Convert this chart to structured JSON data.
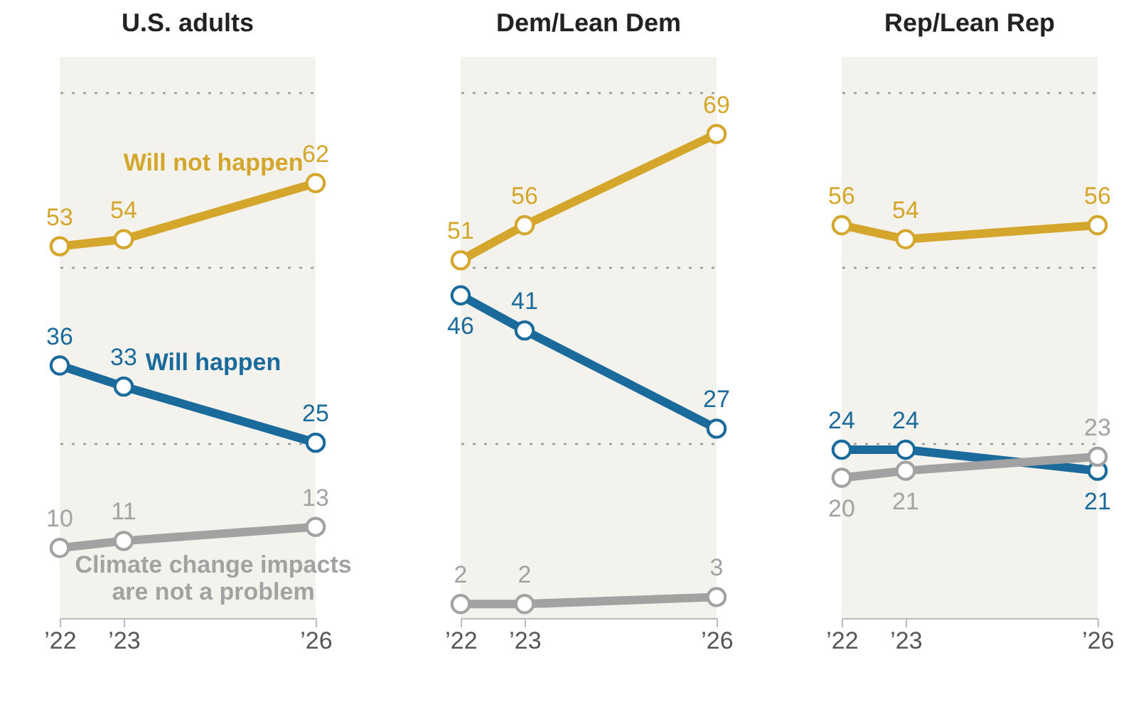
{
  "chart_data": [
    {
      "type": "line",
      "title": "U.S. adults",
      "x": [
        2022,
        2023,
        2026
      ],
      "xlim": [
        2022,
        2026
      ],
      "xticks": [
        {
          "value": 2022,
          "label": "’22"
        },
        {
          "value": 2023,
          "label": "’23"
        },
        {
          "value": 2026,
          "label": "’26"
        }
      ],
      "ylim": [
        0,
        80
      ],
      "yticks": [
        {
          "value": 25,
          "label": null
        },
        {
          "value": 50,
          "label": null
        },
        {
          "value": 75,
          "label": null
        }
      ],
      "grid": "y",
      "tick_labels": "x",
      "marker": "circle",
      "line_style": "solid",
      "data_labels": true,
      "series": [
        {
          "name": "Will not happen",
          "color": "#d4a72c",
          "values": [
            53,
            54,
            62
          ]
        },
        {
          "name": "Will happen",
          "color": "#1b6a9c",
          "values": [
            36,
            33,
            25
          ]
        },
        {
          "name": "Climate change impacts are not a problem",
          "color": "#a2a2a2",
          "values": [
            10,
            11,
            13
          ]
        }
      ]
    },
    {
      "type": "line",
      "title": "Dem/Lean Dem",
      "x": [
        2022,
        2023,
        2026
      ],
      "xlim": [
        2022,
        2026
      ],
      "xticks": [
        {
          "value": 2022,
          "label": "’22"
        },
        {
          "value": 2023,
          "label": "’23"
        },
        {
          "value": 2026,
          "label": "’26"
        }
      ],
      "ylim": [
        0,
        80
      ],
      "yticks": [
        {
          "value": 25,
          "label": null
        },
        {
          "value": 50,
          "label": null
        },
        {
          "value": 75,
          "label": null
        }
      ],
      "grid": "y",
      "tick_labels": "x",
      "marker": "circle",
      "line_style": "solid",
      "data_labels": true,
      "series": [
        {
          "color": "#d4a72c",
          "values": [
            51,
            56,
            69
          ]
        },
        {
          "color": "#1b6a9c",
          "values": [
            46,
            41,
            27
          ]
        },
        {
          "color": "#a2a2a2",
          "values": [
            2,
            2,
            3
          ]
        }
      ]
    },
    {
      "type": "line",
      "title": "Rep/Lean Rep",
      "x": [
        2022,
        2023,
        2026
      ],
      "xlim": [
        2022,
        2026
      ],
      "xticks": [
        {
          "value": 2022,
          "label": "’22"
        },
        {
          "value": 2023,
          "label": "’23"
        },
        {
          "value": 2026,
          "label": "’26"
        }
      ],
      "ylim": [
        0,
        80
      ],
      "yticks": [
        {
          "value": 25,
          "label": null
        },
        {
          "value": 50,
          "label": null
        },
        {
          "value": 75,
          "label": null
        }
      ],
      "grid": "y",
      "tick_labels": "x",
      "marker": "circle",
      "line_style": "solid",
      "data_labels": true,
      "series": [
        {
          "color": "#d4a72c",
          "values": [
            56,
            54,
            56
          ]
        },
        {
          "color": "#1b6a9c",
          "values": [
            24,
            24,
            21
          ]
        },
        {
          "color": "#a2a2a2",
          "values": [
            20,
            21,
            23
          ]
        }
      ]
    }
  ]
}
